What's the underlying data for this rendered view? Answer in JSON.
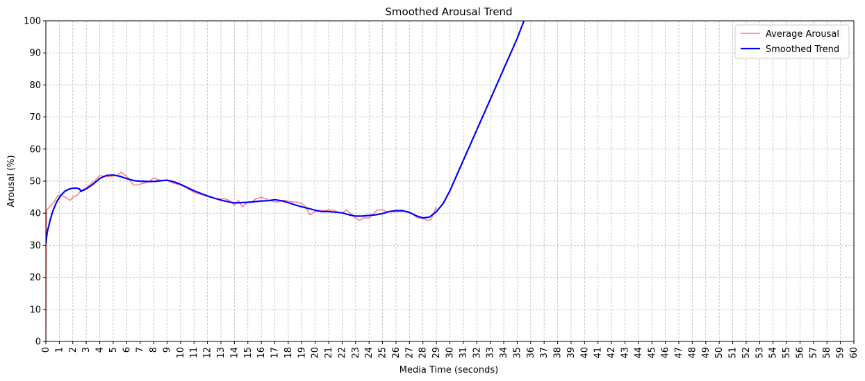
{
  "chart_data": {
    "type": "line",
    "title": "Smoothed Arousal Trend",
    "xlabel": "Media Time (seconds)",
    "ylabel": "Arousal (%)",
    "xlim": [
      0,
      60
    ],
    "ylim": [
      0,
      100
    ],
    "xticks": [
      0,
      1,
      2,
      3,
      4,
      5,
      6,
      7,
      8,
      9,
      10,
      11,
      12,
      13,
      14,
      15,
      16,
      17,
      18,
      19,
      20,
      21,
      22,
      23,
      24,
      25,
      26,
      27,
      28,
      29,
      30,
      31,
      32,
      33,
      34,
      35,
      36,
      37,
      38,
      39,
      40,
      41,
      42,
      43,
      44,
      45,
      46,
      47,
      48,
      49,
      50,
      51,
      52,
      53,
      54,
      55,
      56,
      57,
      58,
      59,
      60
    ],
    "yticks": [
      0,
      10,
      20,
      30,
      40,
      50,
      60,
      70,
      80,
      90,
      100
    ],
    "grid": true,
    "legend_position": "top-right",
    "series": [
      {
        "name": "Average Arousal",
        "color": "#ff7f7f",
        "x": [
          0,
          0.05,
          0.3,
          0.6,
          0.9,
          1.2,
          1.5,
          1.8,
          2.0,
          2.3,
          2.6,
          3.0,
          3.3,
          3.6,
          4.0,
          4.3,
          4.6,
          5.0,
          5.3,
          5.6,
          5.9,
          6.2,
          6.5,
          6.8,
          7.1,
          7.4,
          7.7,
          8.0,
          8.3,
          8.6,
          9.0,
          9.4,
          9.8,
          10.2,
          10.6,
          11.0,
          11.4,
          11.8,
          12.2,
          12.6,
          13.0,
          13.3,
          13.6,
          14.0,
          14.3,
          14.6,
          15.0,
          15.3,
          15.6,
          16.0,
          16.3,
          16.6,
          17.0,
          17.3,
          17.6,
          18.0,
          18.3,
          18.6,
          19.0,
          19.3,
          19.6,
          20.0,
          20.3,
          20.6,
          21.0,
          21.3,
          21.6,
          22.0,
          22.3,
          22.6,
          23.0,
          23.3,
          23.6,
          24.0,
          24.3,
          24.6,
          25.0,
          25.3,
          25.6,
          26.0,
          26.3,
          26.6,
          27.0,
          27.3,
          27.6,
          28.0,
          28.3,
          28.6,
          29.0
        ],
        "y": [
          0,
          41,
          42,
          43.5,
          45.5,
          45.5,
          44.8,
          44,
          45,
          45.5,
          47,
          48,
          49,
          50,
          51.7,
          51.5,
          51.4,
          51.6,
          51.8,
          52.8,
          51.8,
          50.6,
          48.8,
          48.8,
          49.2,
          49.5,
          50,
          51,
          50.5,
          50.2,
          50.2,
          49.5,
          49,
          48.5,
          47.5,
          46.5,
          46,
          45.5,
          45,
          44.5,
          44.5,
          44.5,
          44,
          42.5,
          44,
          42,
          43.5,
          43.5,
          44.5,
          45,
          44.5,
          44,
          43.5,
          43.5,
          44,
          43.8,
          43.5,
          43.5,
          43,
          42,
          39.5,
          40.5,
          40.8,
          40.8,
          41,
          41,
          40.5,
          40,
          41,
          40,
          38.5,
          37.8,
          38.5,
          38.5,
          39.5,
          41,
          41,
          40.5,
          40.5,
          40.5,
          40.5,
          40.5,
          40.5,
          39.5,
          38.5,
          38.5,
          37.8,
          38,
          42
        ]
      },
      {
        "name": "Smoothed Trend",
        "color": "#0000ff",
        "x": [
          0,
          0.1,
          0.3,
          0.5,
          0.8,
          1.1,
          1.4,
          1.7,
          2.0,
          2.3,
          2.5,
          2.6,
          3.0,
          3.5,
          4.0,
          4.5,
          5.0,
          5.5,
          6.0,
          6.5,
          7.0,
          7.5,
          8.0,
          8.5,
          9.0,
          9.5,
          10.0,
          10.5,
          11.0,
          11.5,
          12.0,
          12.5,
          13.0,
          13.5,
          14.0,
          14.5,
          15.0,
          15.5,
          16.0,
          16.5,
          17.0,
          17.5,
          18.0,
          18.5,
          19.0,
          19.5,
          20.0,
          20.5,
          21.0,
          21.5,
          22.0,
          22.5,
          23.0,
          23.5,
          24.0,
          24.5,
          25.0,
          25.5,
          26.0,
          26.5,
          27.0,
          27.5,
          28.0,
          28.5,
          29.0,
          29.5,
          30.0,
          31.0,
          32.0,
          33.0,
          34.0,
          35.0,
          35.5
        ],
        "y": [
          30.5,
          34,
          37.5,
          40.5,
          43.5,
          45.5,
          46.8,
          47.5,
          47.8,
          47.8,
          47.6,
          46.8,
          47.6,
          49,
          50.8,
          51.8,
          51.9,
          51.5,
          50.8,
          50.2,
          50.0,
          49.9,
          49.9,
          50.1,
          50.3,
          49.8,
          49.0,
          48.0,
          47.0,
          46.2,
          45.4,
          44.7,
          44.1,
          43.6,
          43.2,
          43.3,
          43.4,
          43.6,
          43.8,
          43.9,
          44.2,
          43.9,
          43.3,
          42.6,
          42.0,
          41.5,
          40.9,
          40.5,
          40.5,
          40.3,
          40.1,
          39.5,
          39.1,
          39.1,
          39.3,
          39.5,
          39.9,
          40.5,
          40.8,
          40.8,
          40.2,
          39.2,
          38.5,
          38.8,
          40.5,
          43.0,
          47.0,
          56.5,
          66.0,
          75.5,
          85.0,
          94.5,
          100
        ]
      }
    ]
  }
}
